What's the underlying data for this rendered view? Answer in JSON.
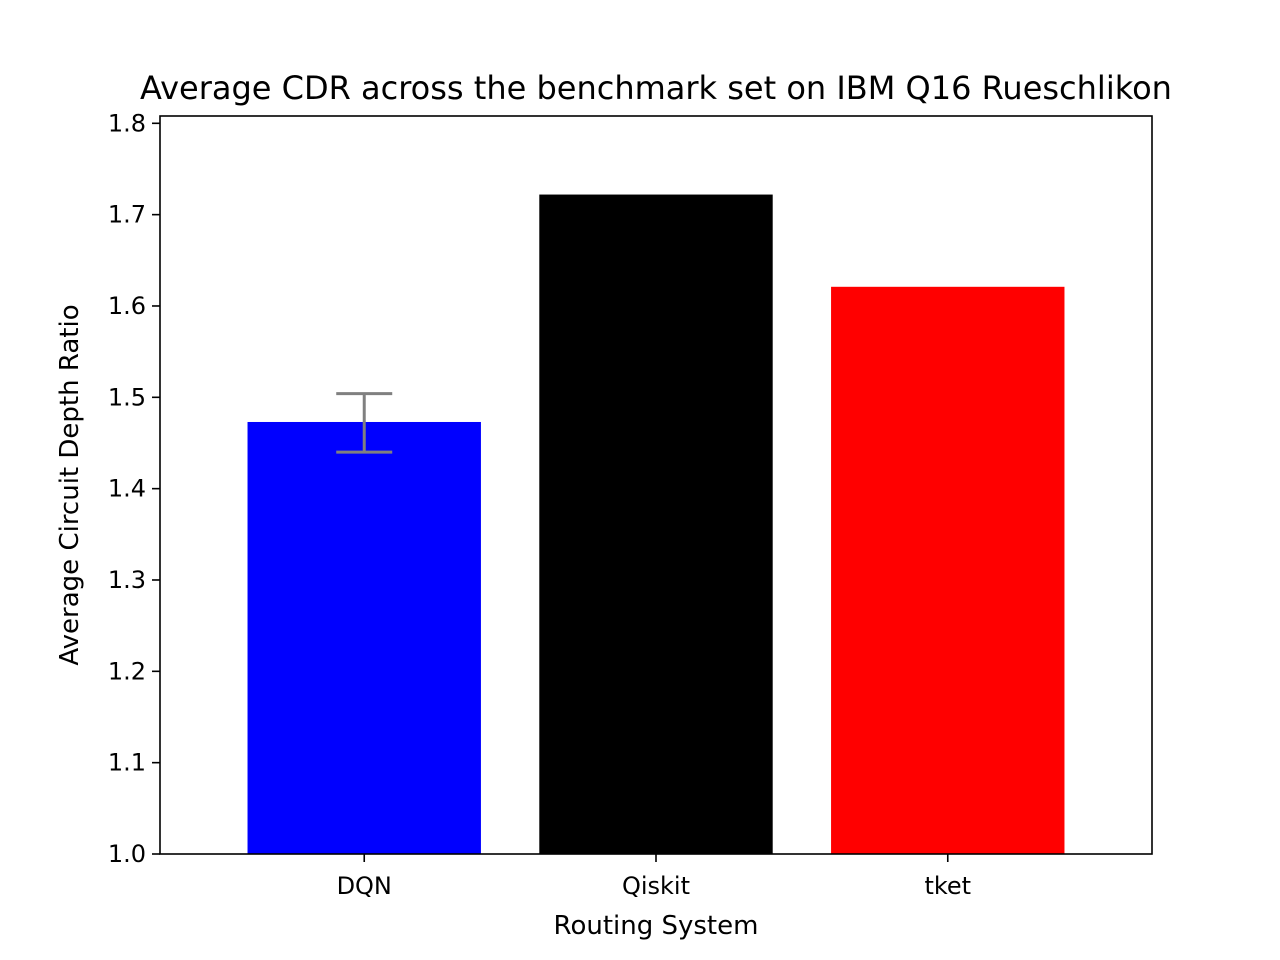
{
  "chart_data": {
    "type": "bar",
    "title": "Average CDR across the benchmark set on IBM Q16 Rueschlikon",
    "xlabel": "Routing System",
    "ylabel": "Average Circuit Depth Ratio",
    "categories": [
      "DQN",
      "Qiskit",
      "tket"
    ],
    "values": [
      1.473,
      1.722,
      1.621
    ],
    "colors": [
      "#0000ff",
      "#000000",
      "#ff0000"
    ],
    "error_bars": [
      {
        "category": "DQN",
        "low": 1.44,
        "high": 1.504,
        "color": "#808080"
      }
    ],
    "ylim": [
      1.0,
      1.808
    ],
    "yticks": [
      1.0,
      1.1,
      1.2,
      1.3,
      1.4,
      1.5,
      1.6,
      1.7,
      1.8
    ],
    "ytick_labels": [
      "1.0",
      "1.1",
      "1.2",
      "1.3",
      "1.4",
      "1.5",
      "1.6",
      "1.7",
      "1.8"
    ],
    "grid": false,
    "legend": "none"
  }
}
